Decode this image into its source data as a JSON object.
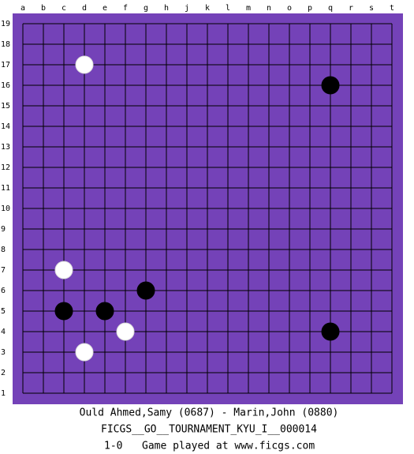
{
  "board": {
    "columns": [
      "a",
      "b",
      "c",
      "d",
      "e",
      "f",
      "g",
      "h",
      "j",
      "k",
      "l",
      "m",
      "n",
      "o",
      "p",
      "q",
      "r",
      "s",
      "t"
    ],
    "rows": [
      19,
      18,
      17,
      16,
      15,
      14,
      13,
      12,
      11,
      10,
      9,
      8,
      7,
      6,
      5,
      4,
      3,
      2,
      1
    ],
    "stones": [
      {
        "col": "d",
        "row": 17,
        "color": "white"
      },
      {
        "col": "q",
        "row": 16,
        "color": "black"
      },
      {
        "col": "c",
        "row": 7,
        "color": "white"
      },
      {
        "col": "g",
        "row": 6,
        "color": "black"
      },
      {
        "col": "c",
        "row": 5,
        "color": "black"
      },
      {
        "col": "e",
        "row": 5,
        "color": "black"
      },
      {
        "col": "f",
        "row": 4,
        "color": "white"
      },
      {
        "col": "q",
        "row": 4,
        "color": "black"
      },
      {
        "col": "d",
        "row": 3,
        "color": "white"
      }
    ]
  },
  "footer": {
    "players": "Ould Ahmed,Samy (0687) - Marin,John (0880)",
    "event": "FICGS__GO__TOURNAMENT_KYU_I__000014",
    "result": "1-0",
    "site": "Game played at www.ficgs.com"
  }
}
